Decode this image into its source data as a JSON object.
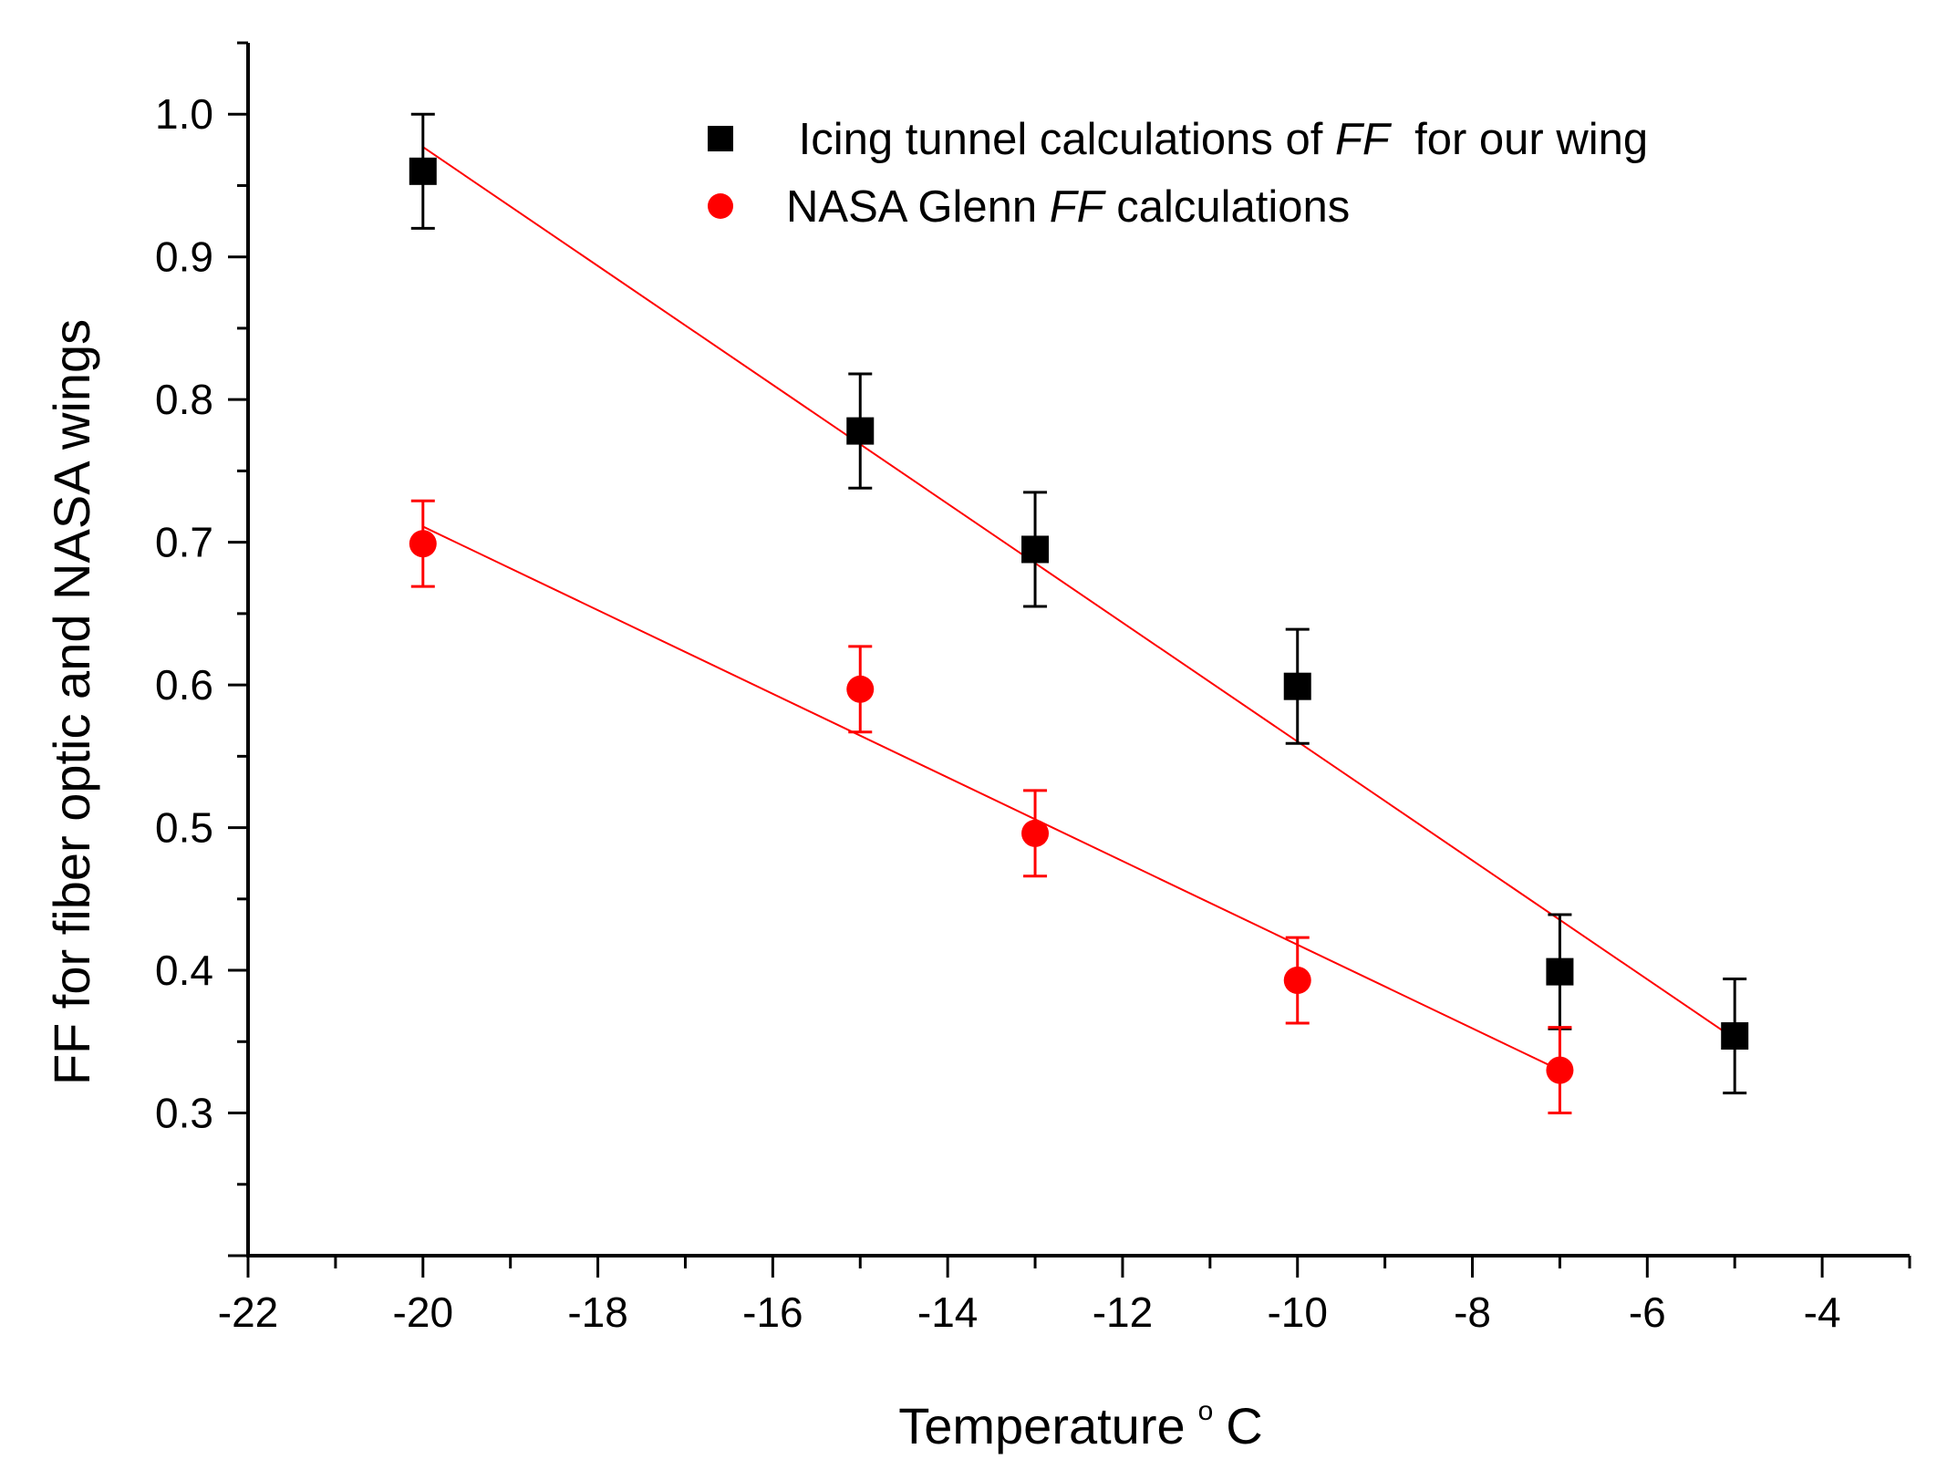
{
  "chart_data": {
    "type": "scatter",
    "title": "",
    "xlabel": "Temperature",
    "xlabel_unit_sup": "o",
    "xlabel_unit": "C",
    "ylabel": "FF for fiber optic and NASA wings",
    "xlim": [
      -22,
      -3
    ],
    "ylim": [
      0.2,
      1.05
    ],
    "xticks": [
      -22,
      -20,
      -18,
      -16,
      -14,
      -12,
      -10,
      -8,
      -6,
      -4
    ],
    "xtick_labels": [
      "-22",
      "-20",
      "-18",
      "-16",
      "-14",
      "-12",
      "-10",
      "-8",
      "-6",
      "-4"
    ],
    "yticks": [
      0.3,
      0.4,
      0.5,
      0.6,
      0.7,
      0.8,
      0.9,
      1.0
    ],
    "ytick_labels": [
      "0.3",
      "0.4",
      "0.5",
      "0.6",
      "0.7",
      "0.8",
      "0.9",
      "1.0"
    ],
    "grid": false,
    "legend_position": "top-right",
    "fit_line_color": "#ff0000",
    "series": [
      {
        "name": "Icing tunnel calculations of FF for our wing",
        "legend_parts": [
          " Icing tunnel calculations of ",
          "FF",
          "  for our wing"
        ],
        "marker": "square",
        "color": "#000000",
        "x": [
          -20,
          -15,
          -13,
          -10,
          -7,
          -5
        ],
        "y": [
          0.96,
          0.778,
          0.695,
          0.599,
          0.399,
          0.354
        ],
        "err": [
          0.04,
          0.04,
          0.04,
          0.04,
          0.04,
          0.04
        ],
        "fit": {
          "x": [
            -20,
            -5
          ],
          "y": [
            0.977,
            0.352
          ]
        }
      },
      {
        "name": "NASA Glenn FF calculations",
        "legend_parts": [
          "NASA Glenn ",
          "FF",
          " calculations"
        ],
        "marker": "circle",
        "color": "#ff0000",
        "x": [
          -20,
          -15,
          -13,
          -10,
          -7
        ],
        "y": [
          0.699,
          0.597,
          0.496,
          0.393,
          0.33
        ],
        "err": [
          0.03,
          0.03,
          0.03,
          0.03,
          0.03
        ],
        "fit": {
          "x": [
            -20,
            -7
          ],
          "y": [
            0.711,
            0.33
          ]
        }
      }
    ]
  }
}
